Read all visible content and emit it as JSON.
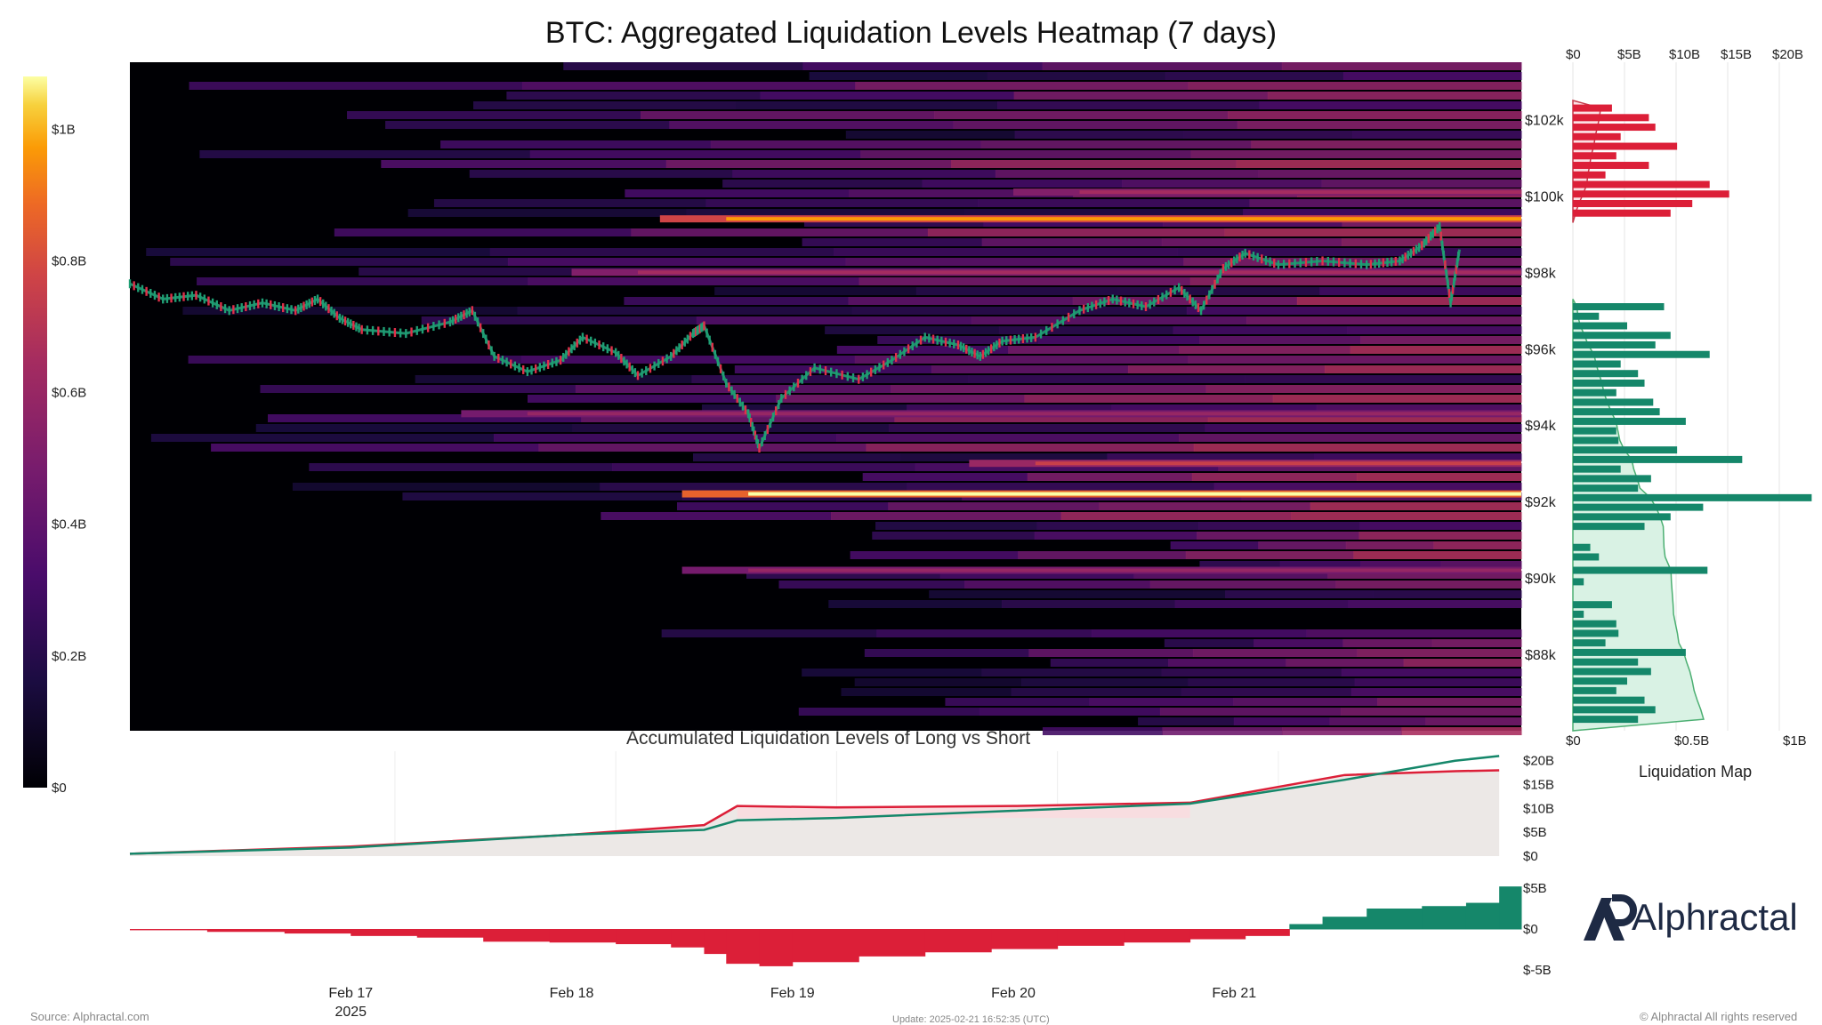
{
  "title": "BTC: Aggregated Liquidation Levels Heatmap (7 days)",
  "colorbar": {
    "ticks": [
      {
        "label": "$1B",
        "value": 1.0
      },
      {
        "label": "$0.8B",
        "value": 0.8
      },
      {
        "label": "$0.6B",
        "value": 0.6
      },
      {
        "label": "$0.4B",
        "value": 0.4
      },
      {
        "label": "$0.2B",
        "value": 0.2
      },
      {
        "label": "$0",
        "value": 0
      }
    ]
  },
  "heatmap": {
    "price_ticks": [
      "$102k",
      "$100k",
      "$98k",
      "$96k",
      "$94k",
      "$92k",
      "$90k",
      "$88k"
    ],
    "price_tick_values": [
      102000,
      100000,
      98000,
      96000,
      94000,
      92000,
      90000,
      88000
    ],
    "y_range": [
      86000,
      103500
    ],
    "hot_bands": [
      {
        "price": 99400,
        "start_day": 2.4,
        "intensity": 0.9
      },
      {
        "price": 92200,
        "start_day": 2.5,
        "intensity": 1.0
      },
      {
        "price": 93000,
        "start_day": 3.8,
        "intensity": 0.7
      },
      {
        "price": 98000,
        "start_day": 2.0,
        "intensity": 0.6
      },
      {
        "price": 94300,
        "start_day": 1.5,
        "intensity": 0.55
      },
      {
        "price": 90200,
        "start_day": 2.5,
        "intensity": 0.55
      },
      {
        "price": 100100,
        "start_day": 4.0,
        "intensity": 0.6
      }
    ]
  },
  "right_panel": {
    "top_ticks": [
      "$0",
      "$5B",
      "$10B",
      "$15B",
      "$20B"
    ],
    "bottom_ticks": [
      "$0",
      "$0.5B",
      "$1B"
    ],
    "label": "Liquidation Map",
    "colors": {
      "short": "#dc1f38",
      "long": "#15876a"
    }
  },
  "chart_data": [
    {
      "type": "heatmap",
      "title": "BTC: Aggregated Liquidation Levels Heatmap (7 days)",
      "x_ticks": [
        "Feb 17",
        "Feb 18",
        "Feb 19",
        "Feb 20",
        "Feb 21"
      ],
      "x_year": "2025",
      "y_ticks": [
        "$102k",
        "$100k",
        "$98k",
        "$96k",
        "$94k",
        "$92k",
        "$90k",
        "$88k"
      ],
      "price_path": [
        {
          "day": 0.0,
          "price": 97700
        },
        {
          "day": 0.15,
          "price": 97300
        },
        {
          "day": 0.3,
          "price": 97400
        },
        {
          "day": 0.45,
          "price": 97000
        },
        {
          "day": 0.6,
          "price": 97200
        },
        {
          "day": 0.75,
          "price": 97000
        },
        {
          "day": 0.85,
          "price": 97300
        },
        {
          "day": 0.95,
          "price": 96800
        },
        {
          "day": 1.05,
          "price": 96500
        },
        {
          "day": 1.25,
          "price": 96400
        },
        {
          "day": 1.45,
          "price": 96700
        },
        {
          "day": 1.55,
          "price": 97000
        },
        {
          "day": 1.65,
          "price": 95800
        },
        {
          "day": 1.8,
          "price": 95400
        },
        {
          "day": 1.95,
          "price": 95700
        },
        {
          "day": 2.05,
          "price": 96300
        },
        {
          "day": 2.2,
          "price": 95900
        },
        {
          "day": 2.3,
          "price": 95300
        },
        {
          "day": 2.45,
          "price": 95800
        },
        {
          "day": 2.55,
          "price": 96400
        },
        {
          "day": 2.6,
          "price": 96600
        },
        {
          "day": 2.7,
          "price": 95100
        },
        {
          "day": 2.8,
          "price": 94300
        },
        {
          "day": 2.85,
          "price": 93400
        },
        {
          "day": 2.95,
          "price": 94700
        },
        {
          "day": 3.1,
          "price": 95500
        },
        {
          "day": 3.3,
          "price": 95200
        },
        {
          "day": 3.45,
          "price": 95700
        },
        {
          "day": 3.6,
          "price": 96300
        },
        {
          "day": 3.75,
          "price": 96100
        },
        {
          "day": 3.85,
          "price": 95800
        },
        {
          "day": 3.95,
          "price": 96200
        },
        {
          "day": 4.1,
          "price": 96300
        },
        {
          "day": 4.3,
          "price": 97000
        },
        {
          "day": 4.45,
          "price": 97300
        },
        {
          "day": 4.6,
          "price": 97100
        },
        {
          "day": 4.75,
          "price": 97600
        },
        {
          "day": 4.85,
          "price": 97000
        },
        {
          "day": 4.95,
          "price": 98100
        },
        {
          "day": 5.05,
          "price": 98500
        },
        {
          "day": 5.2,
          "price": 98200
        },
        {
          "day": 5.4,
          "price": 98300
        },
        {
          "day": 5.6,
          "price": 98200
        },
        {
          "day": 5.75,
          "price": 98300
        },
        {
          "day": 5.85,
          "price": 98700
        },
        {
          "day": 5.93,
          "price": 99200
        },
        {
          "day": 5.98,
          "price": 97200
        },
        {
          "day": 6.02,
          "price": 98600
        }
      ]
    },
    {
      "type": "bar",
      "title": "Liquidation Map",
      "x_ticks": [
        "$0",
        "$0.5B",
        "$1B"
      ],
      "short_bars": [
        {
          "price": 102300,
          "value": 0.18
        },
        {
          "price": 102050,
          "value": 0.35
        },
        {
          "price": 101800,
          "value": 0.38
        },
        {
          "price": 101550,
          "value": 0.22
        },
        {
          "price": 101300,
          "value": 0.48
        },
        {
          "price": 101050,
          "value": 0.2
        },
        {
          "price": 100800,
          "value": 0.35
        },
        {
          "price": 100550,
          "value": 0.15
        },
        {
          "price": 100300,
          "value": 0.63
        },
        {
          "price": 100050,
          "value": 0.72
        },
        {
          "price": 99800,
          "value": 0.55
        },
        {
          "price": 99550,
          "value": 0.45
        }
      ],
      "long_bars": [
        {
          "price": 97100,
          "value": 0.42
        },
        {
          "price": 96850,
          "value": 0.12
        },
        {
          "price": 96600,
          "value": 0.25
        },
        {
          "price": 96350,
          "value": 0.45
        },
        {
          "price": 96100,
          "value": 0.38
        },
        {
          "price": 95850,
          "value": 0.63
        },
        {
          "price": 95600,
          "value": 0.22
        },
        {
          "price": 95350,
          "value": 0.3
        },
        {
          "price": 95100,
          "value": 0.33
        },
        {
          "price": 94850,
          "value": 0.2
        },
        {
          "price": 94600,
          "value": 0.37
        },
        {
          "price": 94350,
          "value": 0.4
        },
        {
          "price": 94100,
          "value": 0.52
        },
        {
          "price": 93850,
          "value": 0.2
        },
        {
          "price": 93600,
          "value": 0.21
        },
        {
          "price": 93350,
          "value": 0.48
        },
        {
          "price": 93100,
          "value": 0.78
        },
        {
          "price": 92850,
          "value": 0.22
        },
        {
          "price": 92600,
          "value": 0.36
        },
        {
          "price": 92350,
          "value": 0.3
        },
        {
          "price": 92100,
          "value": 1.1
        },
        {
          "price": 91850,
          "value": 0.6
        },
        {
          "price": 91600,
          "value": 0.45
        },
        {
          "price": 91350,
          "value": 0.33
        },
        {
          "price": 90800,
          "value": 0.08
        },
        {
          "price": 90550,
          "value": 0.12
        },
        {
          "price": 90200,
          "value": 0.62
        },
        {
          "price": 89900,
          "value": 0.05
        },
        {
          "price": 89300,
          "value": 0.18
        },
        {
          "price": 89050,
          "value": 0.05
        },
        {
          "price": 88800,
          "value": 0.2
        },
        {
          "price": 88550,
          "value": 0.21
        },
        {
          "price": 88300,
          "value": 0.15
        },
        {
          "price": 88050,
          "value": 0.52
        },
        {
          "price": 87800,
          "value": 0.3
        },
        {
          "price": 87550,
          "value": 0.36
        },
        {
          "price": 87300,
          "value": 0.25
        },
        {
          "price": 87050,
          "value": 0.2
        },
        {
          "price": 86800,
          "value": 0.33
        },
        {
          "price": 86550,
          "value": 0.38
        },
        {
          "price": 86300,
          "value": 0.3
        }
      ]
    },
    {
      "type": "line",
      "title": "Accumulated Liquidation Levels of Long vs Short",
      "y_ticks": [
        "$20B",
        "$15B",
        "$10B",
        "$5B",
        "$0"
      ],
      "ylim": [
        0,
        20
      ],
      "series": [
        {
          "color": "#dc1f38",
          "points": [
            [
              0,
              0.5
            ],
            [
              1,
              2
            ],
            [
              2,
              4.5
            ],
            [
              2.6,
              6.5
            ],
            [
              2.75,
              10.5
            ],
            [
              3.2,
              10.2
            ],
            [
              4,
              10.5
            ],
            [
              4.8,
              11.2
            ],
            [
              5.5,
              17
            ],
            [
              6,
              17.8
            ],
            [
              6.2,
              18
            ]
          ]
        },
        {
          "color": "#15876a",
          "points": [
            [
              0,
              0.5
            ],
            [
              1,
              1.8
            ],
            [
              2,
              4.5
            ],
            [
              2.6,
              5.5
            ],
            [
              2.75,
              7.5
            ],
            [
              3.2,
              8
            ],
            [
              4,
              9.5
            ],
            [
              4.8,
              11
            ],
            [
              5.5,
              16
            ],
            [
              6,
              20
            ],
            [
              6.2,
              21
            ]
          ]
        }
      ]
    },
    {
      "type": "bar",
      "y_ticks": [
        "$5B",
        "$0",
        "$-5B"
      ],
      "ylim": [
        -5,
        5
      ],
      "x_ticks": [
        "Feb 17",
        "Feb 18",
        "Feb 19",
        "Feb 20",
        "Feb 21"
      ],
      "values": [
        {
          "day": 0.0,
          "value": -0.1
        },
        {
          "day": 0.35,
          "value": -0.3
        },
        {
          "day": 0.7,
          "value": -0.5
        },
        {
          "day": 1.0,
          "value": -0.8
        },
        {
          "day": 1.3,
          "value": -1.0
        },
        {
          "day": 1.6,
          "value": -1.5
        },
        {
          "day": 1.9,
          "value": -1.6
        },
        {
          "day": 2.2,
          "value": -1.8
        },
        {
          "day": 2.45,
          "value": -2.2
        },
        {
          "day": 2.6,
          "value": -3.0
        },
        {
          "day": 2.7,
          "value": -4.2
        },
        {
          "day": 2.85,
          "value": -4.5
        },
        {
          "day": 3.0,
          "value": -4.0
        },
        {
          "day": 3.3,
          "value": -3.3
        },
        {
          "day": 3.6,
          "value": -2.8
        },
        {
          "day": 3.9,
          "value": -2.4
        },
        {
          "day": 4.2,
          "value": -2.0
        },
        {
          "day": 4.5,
          "value": -1.6
        },
        {
          "day": 4.8,
          "value": -1.2
        },
        {
          "day": 5.05,
          "value": -0.8
        },
        {
          "day": 5.25,
          "value": 0.6
        },
        {
          "day": 5.4,
          "value": 1.5
        },
        {
          "day": 5.6,
          "value": 2.5
        },
        {
          "day": 5.85,
          "value": 2.8
        },
        {
          "day": 6.05,
          "value": 3.2
        },
        {
          "day": 6.2,
          "value": 5.2
        },
        {
          "day": 6.3,
          "value": 5.0
        }
      ]
    }
  ],
  "footer": {
    "source": "Source: Alphractal.com",
    "update": "Update: 2025-02-21 16:52:35 (UTC)",
    "copyright": "© Alphractal All rights reserved"
  },
  "logo": {
    "text": "Alphractal",
    "color": "#1e2a44"
  }
}
